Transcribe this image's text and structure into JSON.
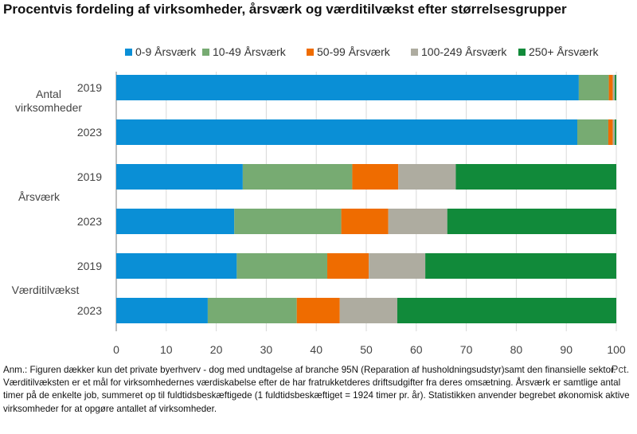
{
  "title": "Procentvis fordeling af virksomheder, årsværk og værditilvækst efter størrelsesgrupper",
  "note": "Anm.: Figuren dækker kun det private byerhverv - dog med undtagelse af branche 95N (Reparation af husholdningsudstyr)samt den finansielle sektor. Værditilvæksten er et mål for virksomhedernes værdiskabelse efter de har fratrukketderes driftsudgifter fra deres omsætning. Årsværk er samtlige antal timer på de enkelte job, summeret op til fuldtidsbeskæftigede (1 fuldtidsbeskæftiget = 1924 timer pr. år). Statistikken anvender begrebet økonomisk aktive virksomheder for at opgøre antallet af virksomheder.",
  "chart_data": {
    "type": "bar",
    "orientation": "horizontal",
    "stacked": true,
    "xlabel": "Pct.",
    "xlim": [
      0,
      100
    ],
    "xticks": [
      0,
      10,
      20,
      30,
      40,
      50,
      60,
      70,
      80,
      90,
      100
    ],
    "grid": true,
    "legend_position": "top",
    "groups": [
      {
        "label": "Antal virksomheder",
        "categories": [
          "2019",
          "2023"
        ]
      },
      {
        "label": "Årsværk",
        "categories": [
          "2019",
          "2023"
        ]
      },
      {
        "label": "Værditilvækst",
        "categories": [
          "2019",
          "2023"
        ]
      }
    ],
    "series": [
      {
        "name": "0-9 Årsværk",
        "color": "#0a8fd6",
        "values": [
          92.5,
          92.2,
          25.3,
          23.6,
          24.1,
          18.3
        ]
      },
      {
        "name": "10-49 Årsværk",
        "color": "#77ab72",
        "values": [
          6.0,
          6.2,
          21.9,
          21.4,
          18.1,
          17.8
        ]
      },
      {
        "name": "50-99 Årsværk",
        "color": "#ef6c00",
        "values": [
          0.8,
          0.9,
          9.2,
          9.4,
          8.3,
          8.6
        ]
      },
      {
        "name": "100-249 Årsværk",
        "color": "#aeaca0",
        "values": [
          0.4,
          0.4,
          11.5,
          11.8,
          11.3,
          11.5
        ]
      },
      {
        "name": "250+ Årsværk",
        "color": "#118a3a",
        "values": [
          0.3,
          0.3,
          32.1,
          33.8,
          38.2,
          43.8
        ]
      }
    ]
  }
}
